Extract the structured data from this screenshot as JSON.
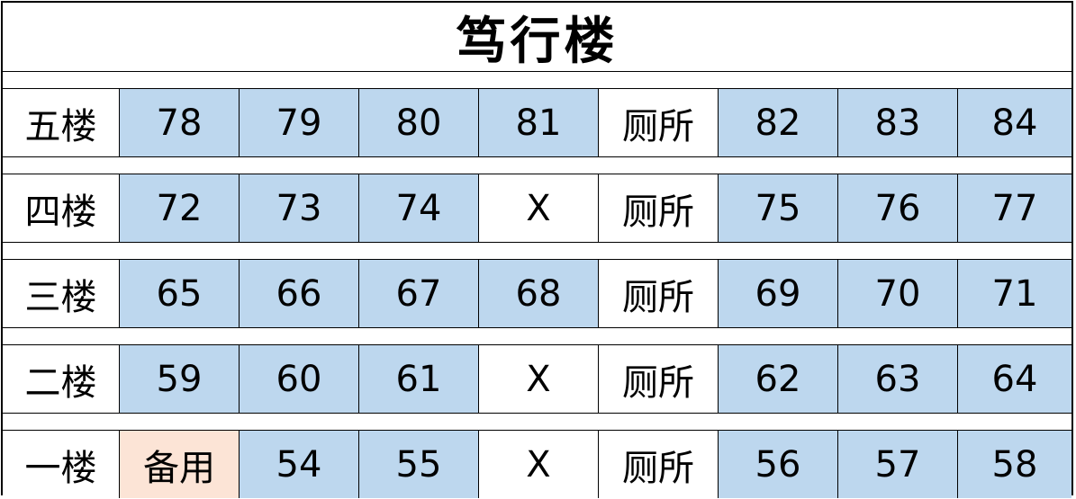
{
  "title": "笃行楼",
  "colors": {
    "room": "#BDD7EE",
    "spare": "#FCE4D6",
    "other": "#FFFFFF"
  },
  "floors": [
    {
      "label": "五楼",
      "cells": [
        {
          "text": "78",
          "type": "room"
        },
        {
          "text": "79",
          "type": "room"
        },
        {
          "text": "80",
          "type": "room"
        },
        {
          "text": "81",
          "type": "room"
        },
        {
          "text": "厕所",
          "type": "other"
        },
        {
          "text": "82",
          "type": "room"
        },
        {
          "text": "83",
          "type": "room"
        },
        {
          "text": "84",
          "type": "room"
        }
      ]
    },
    {
      "label": "四楼",
      "cells": [
        {
          "text": "72",
          "type": "room"
        },
        {
          "text": "73",
          "type": "room"
        },
        {
          "text": "74",
          "type": "room"
        },
        {
          "text": "X",
          "type": "other"
        },
        {
          "text": "厕所",
          "type": "other"
        },
        {
          "text": "75",
          "type": "room"
        },
        {
          "text": "76",
          "type": "room"
        },
        {
          "text": "77",
          "type": "room"
        }
      ]
    },
    {
      "label": "三楼",
      "cells": [
        {
          "text": "65",
          "type": "room"
        },
        {
          "text": "66",
          "type": "room"
        },
        {
          "text": "67",
          "type": "room"
        },
        {
          "text": "68",
          "type": "room"
        },
        {
          "text": "厕所",
          "type": "other"
        },
        {
          "text": "69",
          "type": "room"
        },
        {
          "text": "70",
          "type": "room"
        },
        {
          "text": "71",
          "type": "room"
        }
      ]
    },
    {
      "label": "二楼",
      "cells": [
        {
          "text": "59",
          "type": "room"
        },
        {
          "text": "60",
          "type": "room"
        },
        {
          "text": "61",
          "type": "room"
        },
        {
          "text": "X",
          "type": "other"
        },
        {
          "text": "厕所",
          "type": "other"
        },
        {
          "text": "62",
          "type": "room"
        },
        {
          "text": "63",
          "type": "room"
        },
        {
          "text": "64",
          "type": "room"
        }
      ]
    },
    {
      "label": "一楼",
      "cells": [
        {
          "text": "备用",
          "type": "spare"
        },
        {
          "text": "54",
          "type": "room"
        },
        {
          "text": "55",
          "type": "room"
        },
        {
          "text": "X",
          "type": "other"
        },
        {
          "text": "厕所",
          "type": "other"
        },
        {
          "text": "56",
          "type": "room"
        },
        {
          "text": "57",
          "type": "room"
        },
        {
          "text": "58",
          "type": "room"
        }
      ]
    }
  ]
}
